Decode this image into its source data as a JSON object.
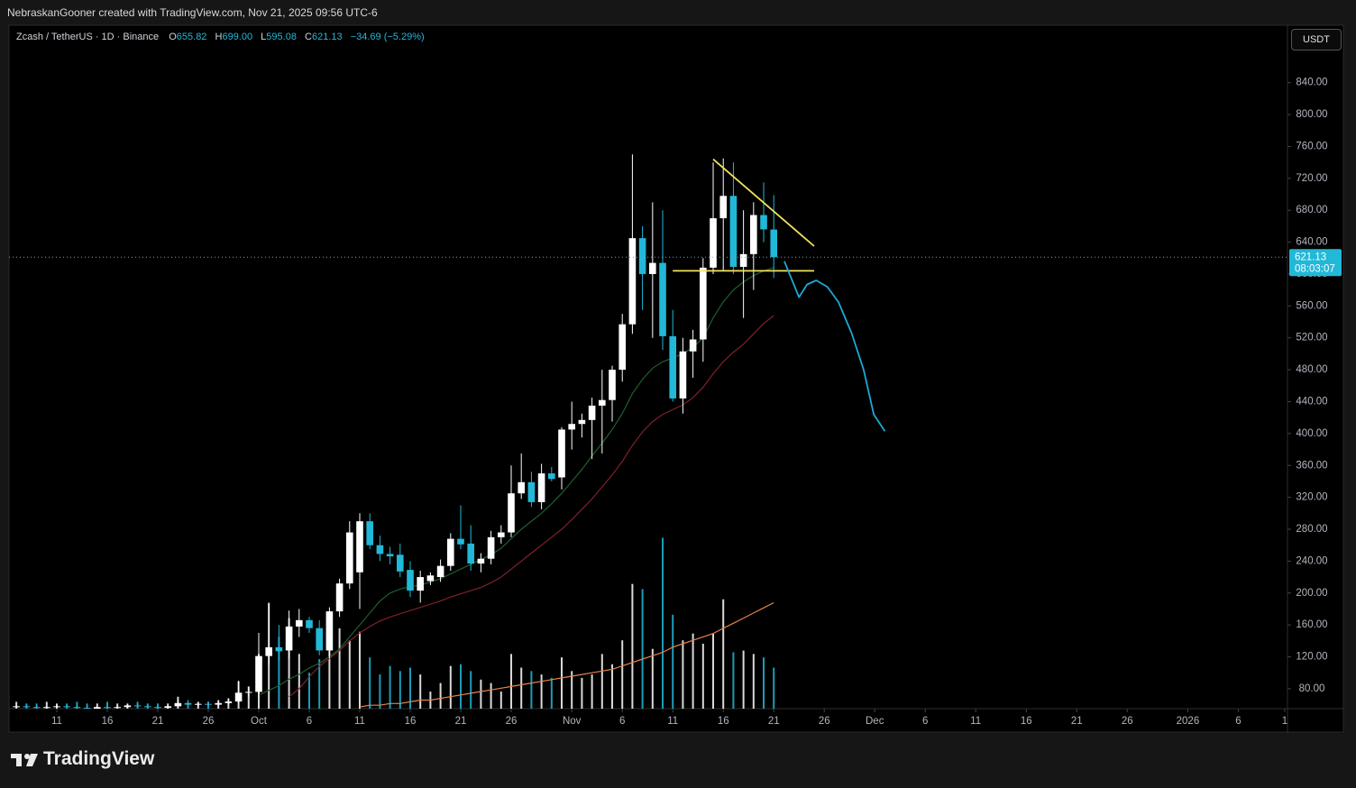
{
  "header": {
    "attribution": "NebraskanGooner created with TradingView.com, Nov 21, 2025 09:56 UTC-6"
  },
  "chart_data": {
    "type": "candlestick",
    "symbol": "Zcash / TetherUS · 1D · Binance",
    "ohlc_legend": [
      {
        "key": "O",
        "value": "655.82"
      },
      {
        "key": "H",
        "value": "699.00"
      },
      {
        "key": "L",
        "value": "595.08"
      },
      {
        "key": "C",
        "value": "621.13"
      }
    ],
    "change": "−34.69 (−5.29%)",
    "currency": "USDT",
    "up_color": "#ffffff",
    "down_color": "#22b8d8",
    "open": [
      57,
      58,
      57,
      56,
      57,
      58,
      57,
      56,
      55,
      57,
      56,
      57,
      59,
      58,
      57,
      56,
      58,
      62,
      60,
      61,
      60,
      62,
      64,
      75,
      76,
      121,
      132,
      128,
      158,
      166,
      156,
      128,
      177,
      212,
      226,
      290,
      260,
      249,
      248,
      229,
      203,
      215,
      220,
      234,
      268,
      262,
      237,
      243,
      270,
      276,
      325,
      339,
      314,
      350,
      345,
      405,
      412,
      417,
      435,
      442,
      480,
      537,
      645,
      600,
      614,
      522,
      444,
      503,
      518,
      608,
      670,
      698,
      609,
      625,
      674,
      655.82
    ],
    "high": [
      59,
      60,
      59,
      58,
      60,
      60,
      59,
      58,
      58,
      59,
      58,
      60,
      61,
      60,
      59,
      59,
      66,
      66,
      63,
      64,
      64,
      68,
      90,
      82,
      150,
      186,
      160,
      178,
      180,
      170,
      166,
      182,
      218,
      290,
      300,
      300,
      272,
      258,
      262,
      240,
      228,
      226,
      242,
      275,
      310,
      285,
      250,
      278,
      285,
      360,
      375,
      352,
      362,
      358,
      408,
      440,
      425,
      445,
      480,
      485,
      550,
      750,
      660,
      690,
      680,
      555,
      520,
      530,
      620,
      740,
      745,
      740,
      680,
      690,
      715,
      699
    ],
    "low": [
      56,
      56,
      55,
      55,
      56,
      56,
      55,
      54,
      54,
      55,
      55,
      56,
      57,
      56,
      55,
      55,
      57,
      59,
      58,
      59,
      58,
      60,
      62,
      70,
      70,
      110,
      115,
      118,
      145,
      150,
      122,
      118,
      170,
      205,
      180,
      255,
      240,
      236,
      220,
      195,
      188,
      210,
      214,
      228,
      255,
      228,
      226,
      236,
      262,
      270,
      318,
      308,
      305,
      340,
      330,
      380,
      395,
      368,
      375,
      415,
      465,
      525,
      555,
      520,
      505,
      440,
      425,
      470,
      490,
      600,
      605,
      600,
      545,
      580,
      640,
      595.08
    ],
    "close": [
      58,
      57,
      56,
      57,
      58,
      57,
      56,
      55,
      57,
      56,
      57,
      59,
      58,
      57,
      56,
      58,
      62,
      60,
      61,
      60,
      62,
      64,
      75,
      76,
      121,
      132,
      127,
      158,
      166,
      156,
      128,
      177,
      212,
      276,
      290,
      260,
      249,
      246,
      227,
      203,
      220,
      222,
      234,
      268,
      261,
      237,
      243,
      270,
      276,
      325,
      339,
      314,
      350,
      343,
      405,
      412,
      417,
      435,
      442,
      480,
      537,
      645,
      600,
      614,
      522,
      444,
      503,
      518,
      608,
      670,
      698,
      609,
      625,
      674,
      656,
      621.13
    ],
    "volume": [
      4,
      3,
      3,
      4,
      3,
      3,
      4,
      3,
      3,
      4,
      3,
      3,
      4,
      3,
      3,
      3,
      7,
      4,
      4,
      4,
      5,
      6,
      16,
      13,
      32,
      62,
      42,
      53,
      32,
      21,
      29,
      34,
      47,
      40,
      45,
      30,
      20,
      25,
      22,
      24,
      20,
      10,
      15,
      25,
      26,
      22,
      17,
      15,
      10,
      32,
      24,
      22,
      20,
      18,
      30,
      22,
      18,
      20,
      32,
      26,
      40,
      73,
      70,
      35,
      100,
      55,
      40,
      44,
      38,
      44,
      64,
      33,
      34,
      32,
      30,
      24
    ],
    "xlim": [
      -0.73,
      125.87
    ],
    "xticks": [
      {
        "value": 4,
        "label": "11"
      },
      {
        "value": 9,
        "label": "16"
      },
      {
        "value": 14,
        "label": "21"
      },
      {
        "value": 19,
        "label": "26"
      },
      {
        "value": 24,
        "label": "Oct"
      },
      {
        "value": 29,
        "label": "6"
      },
      {
        "value": 34,
        "label": "11"
      },
      {
        "value": 39,
        "label": "16"
      },
      {
        "value": 44,
        "label": "21"
      },
      {
        "value": 49,
        "label": "26"
      },
      {
        "value": 55,
        "label": "Nov"
      },
      {
        "value": 60,
        "label": "6"
      },
      {
        "value": 65,
        "label": "11"
      },
      {
        "value": 70,
        "label": "16"
      },
      {
        "value": 75,
        "label": "21"
      },
      {
        "value": 80,
        "label": "26"
      },
      {
        "value": 85,
        "label": "Dec"
      },
      {
        "value": 90,
        "label": "6"
      },
      {
        "value": 95,
        "label": "11"
      },
      {
        "value": 100,
        "label": "16"
      },
      {
        "value": 105,
        "label": "21"
      },
      {
        "value": 110,
        "label": "26"
      },
      {
        "value": 116,
        "label": "2026"
      },
      {
        "value": 121,
        "label": "6"
      },
      {
        "value": 125.6,
        "label": "1"
      }
    ],
    "ylim": [
      55,
      912
    ],
    "yticks": [
      {
        "value": 80,
        "label": "80.00"
      },
      {
        "value": 120,
        "label": "120.00"
      },
      {
        "value": 160,
        "label": "160.00"
      },
      {
        "value": 200,
        "label": "200.00"
      },
      {
        "value": 240,
        "label": "240.00"
      },
      {
        "value": 280,
        "label": "280.00"
      },
      {
        "value": 320,
        "label": "320.00"
      },
      {
        "value": 360,
        "label": "360.00"
      },
      {
        "value": 400,
        "label": "400.00"
      },
      {
        "value": 440,
        "label": "440.00"
      },
      {
        "value": 480,
        "label": "480.00"
      },
      {
        "value": 520,
        "label": "520.00"
      },
      {
        "value": 560,
        "label": "560.00"
      },
      {
        "value": 600,
        "label": "600.00"
      },
      {
        "value": 640,
        "label": "640.00"
      },
      {
        "value": 680,
        "label": "680.00"
      },
      {
        "value": 720,
        "label": "720.00"
      },
      {
        "value": 760,
        "label": "760.00"
      },
      {
        "value": 800,
        "label": "800.00"
      },
      {
        "value": 840,
        "label": "840.00"
      }
    ],
    "y2lim": [
      0,
      400
    ],
    "moving_averages": [
      {
        "color": "#1f5e2c",
        "values": [
          null,
          null,
          null,
          null,
          null,
          null,
          null,
          null,
          null,
          null,
          null,
          null,
          null,
          null,
          null,
          null,
          null,
          null,
          null,
          null,
          null,
          null,
          null,
          null,
          72,
          78,
          84,
          92,
          98,
          106,
          112,
          120,
          130,
          145,
          160,
          175,
          190,
          200,
          205,
          208,
          210,
          214,
          218,
          224,
          230,
          236,
          242,
          248,
          256,
          268,
          280,
          290,
          300,
          312,
          325,
          340,
          355,
          372,
          388,
          405,
          425,
          450,
          468,
          482,
          490,
          495,
          500,
          508,
          520,
          545,
          565,
          580,
          590,
          598,
          604,
          608
        ]
      },
      {
        "color": "#80202a",
        "values": [
          null,
          null,
          null,
          null,
          null,
          null,
          null,
          null,
          null,
          null,
          null,
          null,
          null,
          null,
          null,
          null,
          null,
          null,
          null,
          null,
          null,
          null,
          null,
          null,
          null,
          null,
          null,
          70,
          80,
          95,
          108,
          118,
          128,
          140,
          150,
          158,
          165,
          170,
          174,
          178,
          182,
          186,
          190,
          195,
          199,
          203,
          207,
          213,
          220,
          230,
          240,
          250,
          260,
          270,
          280,
          292,
          305,
          318,
          333,
          348,
          365,
          385,
          402,
          415,
          424,
          430,
          436,
          445,
          458,
          475,
          490,
          502,
          512,
          525,
          538,
          548
        ]
      },
      {
        "color": "#e8834a",
        "axis": "y2",
        "values": [
          null,
          null,
          null,
          null,
          null,
          null,
          null,
          null,
          null,
          null,
          null,
          null,
          null,
          null,
          null,
          null,
          null,
          null,
          null,
          null,
          null,
          null,
          null,
          null,
          null,
          null,
          null,
          null,
          null,
          null,
          null,
          null,
          null,
          null,
          1,
          2,
          2,
          3,
          3,
          4,
          5,
          5,
          6,
          7,
          8,
          9,
          10,
          11,
          12,
          13,
          14,
          15,
          16,
          17,
          18,
          19,
          20,
          21,
          22,
          23,
          25,
          27,
          29,
          31,
          33,
          36,
          38,
          40,
          42,
          44,
          47,
          50,
          53,
          56,
          59,
          62
        ]
      }
    ],
    "drawings": [
      {
        "color": "#f2e35c",
        "x": [
          69,
          79
        ],
        "y": [
          744,
          635
        ]
      },
      {
        "color": "#f2e35c",
        "x": [
          65,
          79
        ],
        "y": [
          604,
          604
        ]
      },
      {
        "color": "#1fa8d6",
        "x": [
          76.05,
          76.6,
          77.5,
          78.3,
          79.2,
          80.3,
          81.4,
          82.7,
          83.9,
          84.9,
          86.0
        ],
        "y": [
          616,
          599,
          571,
          587,
          592,
          584,
          565,
          526,
          480,
          424,
          403
        ]
      }
    ],
    "last_price": {
      "value": 621.13,
      "countdown": "08:03:07"
    }
  },
  "branding": {
    "logo": "TradingView"
  }
}
